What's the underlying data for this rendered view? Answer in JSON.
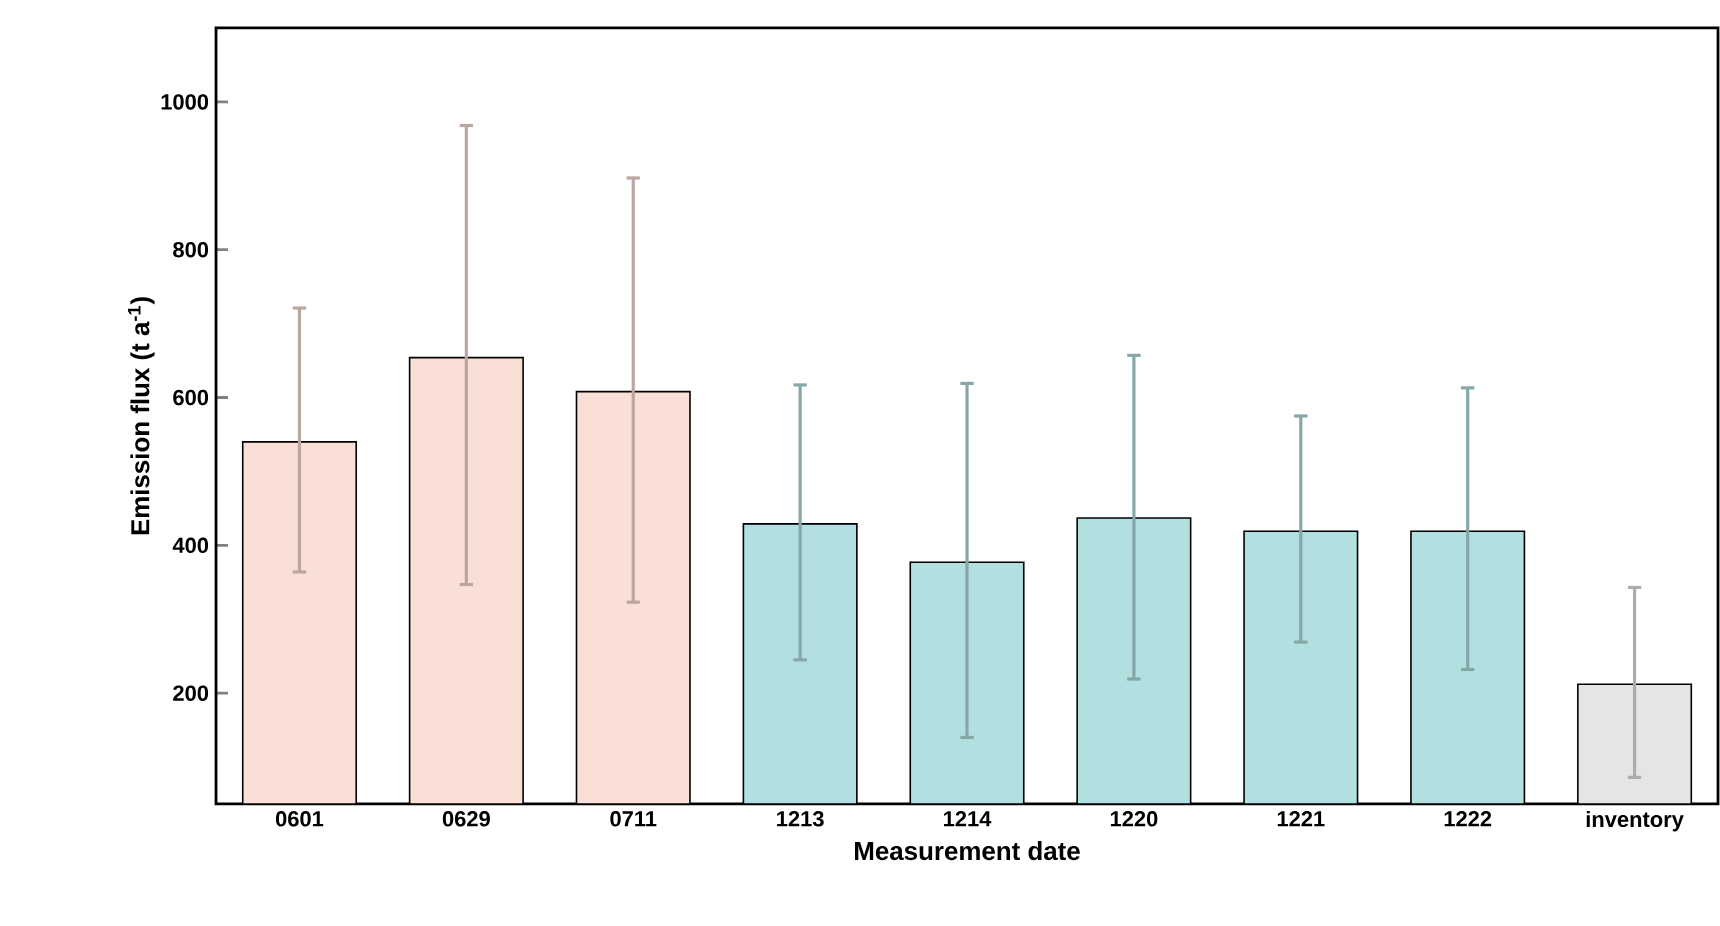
{
  "chart_data": {
    "type": "bar",
    "xlabel": "Measurement date",
    "ylabel": "Emission flux (t a$^{-1}$)",
    "categories": [
      "0601",
      "0629",
      "0711",
      "1213",
      "1214",
      "1220",
      "1221",
      "1222",
      "inventory"
    ],
    "values": [
      540,
      654,
      608,
      429,
      377,
      437,
      419,
      419,
      212
    ],
    "colors": [
      "#f9dfd6",
      "#f9dfd6",
      "#f9dfd6",
      "#b2dfdf",
      "#b2dfdf",
      "#b2dfdf",
      "#b2dfdf",
      "#b2dfdf",
      "#e5e5e5"
    ],
    "errors": [
      [
        364,
        721
      ],
      [
        347,
        968
      ],
      [
        323,
        897
      ],
      [
        245,
        617
      ],
      [
        140,
        619
      ],
      [
        219,
        657
      ],
      [
        269,
        575
      ],
      [
        232,
        613
      ],
      [
        86,
        343
      ]
    ],
    "ylim": [
      50,
      1100
    ],
    "yticks": [
      200,
      400,
      600,
      800,
      1000
    ],
    "grid": false
  }
}
